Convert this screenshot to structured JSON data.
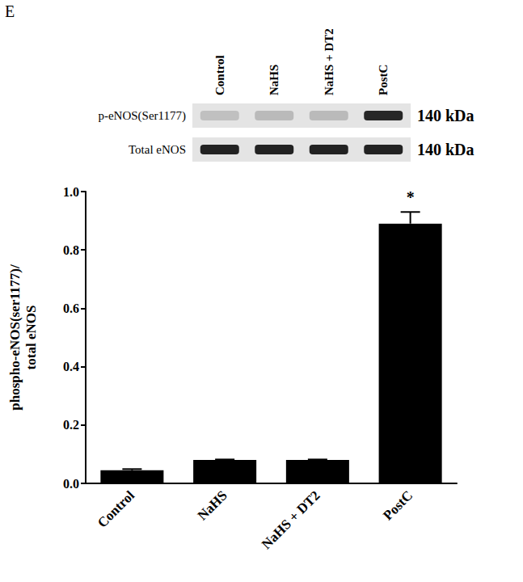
{
  "panel_label": "E",
  "blot": {
    "lanes": [
      "Control",
      "NaHS",
      "NaHS + DT2",
      "PostC"
    ],
    "rows": [
      {
        "label": "p-eNOS(Ser1177)",
        "size": "140 kDa"
      },
      {
        "label": "Total eNOS",
        "size": "140 kDa"
      }
    ]
  },
  "chart_data": {
    "type": "bar",
    "y_label": "phospho-eNOS(ser1177)/\ntotal eNOS",
    "categories": [
      "Control",
      "NaHS",
      "NaHS + DT2",
      "PostC"
    ],
    "values": [
      0.045,
      0.08,
      0.08,
      0.89
    ],
    "errors": [
      0.004,
      0.002,
      0.002,
      0.04
    ],
    "color": "#000000",
    "ylim": [
      0,
      1
    ],
    "yticks": [
      {
        "value": 0,
        "label": "0.0"
      },
      0.2,
      0.4,
      0.6,
      0.8,
      {
        "value": 1,
        "label": "1.0"
      }
    ],
    "grid": false,
    "annotations": [
      {
        "category": "PostC",
        "text": "*"
      }
    ]
  }
}
